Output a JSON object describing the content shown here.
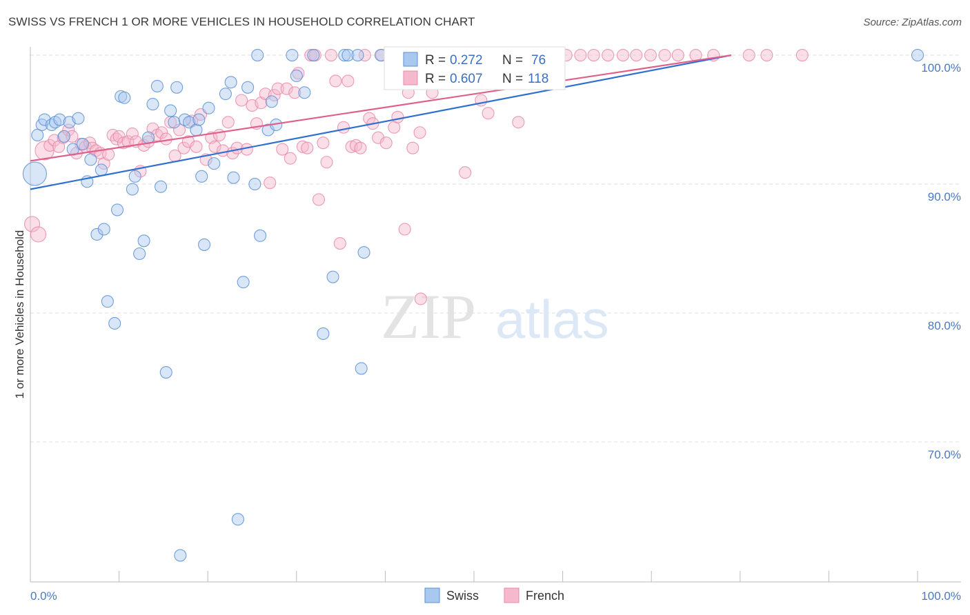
{
  "title": "SWISS VS FRENCH 1 OR MORE VEHICLES IN HOUSEHOLD CORRELATION CHART",
  "source": "Source: ZipAtlas.com",
  "watermark": {
    "zip": "ZIP",
    "atlas": "atlas"
  },
  "colors": {
    "swiss_fill": "#a8c8f0",
    "swiss_stroke": "#5b8fd6",
    "swiss_line": "#2f6fd0",
    "french_fill": "#f6b8cc",
    "french_stroke": "#e88aa8",
    "french_line": "#e0608c",
    "tick_text": "#4a78c2",
    "grid": "#dddddd"
  },
  "chart_data": {
    "type": "scatter",
    "xlabel": "",
    "ylabel": "1 or more Vehicles in Household",
    "xlim": [
      0,
      100
    ],
    "ylim": [
      60,
      101.5
    ],
    "x_ticks": [
      {
        "value": 0,
        "label": "0.0%"
      },
      {
        "value": 100,
        "label": "100.0%"
      }
    ],
    "y_ticks": [
      {
        "value": 100,
        "label": "100.0%"
      },
      {
        "value": 90,
        "label": "90.0%"
      },
      {
        "value": 80,
        "label": "80.0%"
      },
      {
        "value": 70,
        "label": "70.0%"
      }
    ],
    "legend_placement": "top-center",
    "legend": [
      {
        "name": "Swiss",
        "r_label": "R =",
        "r": "0.272",
        "n_label": "N =",
        "n": "76"
      },
      {
        "name": "French",
        "r_label": "R =",
        "r": "0.607",
        "n_label": "N =",
        "n": "118"
      }
    ],
    "series": [
      {
        "name": "Swiss",
        "trend": {
          "x0": 0,
          "y0": 89.6,
          "x1": 79,
          "y1": 100
        },
        "points": [
          [
            0.5,
            90.8,
            2.0
          ],
          [
            0.8,
            93.8,
            1
          ],
          [
            1.3,
            94.6,
            1
          ],
          [
            1.6,
            95.0,
            1
          ],
          [
            2.4,
            94.6,
            1
          ],
          [
            2.8,
            94.8,
            1
          ],
          [
            3.3,
            95.0,
            1
          ],
          [
            3.8,
            93.7,
            1
          ],
          [
            4.4,
            94.8,
            1
          ],
          [
            4.8,
            92.7,
            1
          ],
          [
            5.4,
            95.1,
            1
          ],
          [
            5.9,
            93.1,
            1
          ],
          [
            6.4,
            90.2,
            1
          ],
          [
            6.8,
            91.9,
            1
          ],
          [
            7.5,
            86.1,
            1
          ],
          [
            8.0,
            91.1,
            1
          ],
          [
            8.3,
            86.5,
            1
          ],
          [
            8.7,
            80.9,
            1
          ],
          [
            9.5,
            79.2,
            1
          ],
          [
            9.8,
            88.0,
            1
          ],
          [
            10.2,
            96.8,
            1
          ],
          [
            10.6,
            96.7,
            1
          ],
          [
            11.5,
            89.6,
            1
          ],
          [
            11.8,
            90.6,
            1
          ],
          [
            12.3,
            84.6,
            1
          ],
          [
            12.8,
            85.6,
            1
          ],
          [
            13.3,
            93.6,
            1
          ],
          [
            13.8,
            96.2,
            1
          ],
          [
            14.3,
            97.6,
            1
          ],
          [
            14.7,
            89.8,
            1
          ],
          [
            15.3,
            75.4,
            1
          ],
          [
            15.8,
            95.7,
            1
          ],
          [
            16.2,
            94.8,
            1
          ],
          [
            16.5,
            97.5,
            1
          ],
          [
            16.9,
            61.2,
            1
          ],
          [
            17.4,
            95.0,
            1
          ],
          [
            17.9,
            94.8,
            1
          ],
          [
            18.7,
            94.2,
            1
          ],
          [
            19.0,
            95.0,
            1
          ],
          [
            19.3,
            90.6,
            1
          ],
          [
            19.6,
            85.3,
            1
          ],
          [
            20.1,
            95.9,
            1
          ],
          [
            20.7,
            91.6,
            1
          ],
          [
            22.0,
            97.0,
            1
          ],
          [
            22.6,
            97.9,
            1
          ],
          [
            22.9,
            90.5,
            1
          ],
          [
            23.4,
            64.0,
            1
          ],
          [
            24.0,
            82.4,
            1
          ],
          [
            24.5,
            97.5,
            1
          ],
          [
            25.3,
            90.0,
            1
          ],
          [
            25.6,
            100,
            1
          ],
          [
            25.9,
            86.0,
            1
          ],
          [
            26.8,
            94.2,
            1
          ],
          [
            27.2,
            96.4,
            1
          ],
          [
            27.7,
            94.6,
            1
          ],
          [
            29.5,
            100,
            1
          ],
          [
            30.0,
            98.4,
            1
          ],
          [
            30.9,
            97.1,
            1
          ],
          [
            31.9,
            100,
            1
          ],
          [
            33.0,
            78.4,
            1
          ],
          [
            34.1,
            82.8,
            1
          ],
          [
            35.4,
            100,
            1
          ],
          [
            35.8,
            100,
            1
          ],
          [
            36.9,
            100,
            1
          ],
          [
            37.3,
            75.7,
            1
          ],
          [
            37.6,
            84.7,
            1
          ],
          [
            39.5,
            100,
            1
          ],
          [
            100,
            100,
            1
          ]
        ]
      },
      {
        "name": "French",
        "trend": {
          "x0": 0,
          "y0": 91.8,
          "x1": 79,
          "y1": 100
        },
        "points": [
          [
            0.2,
            86.9,
            1.3
          ],
          [
            0.9,
            86.1,
            1.3
          ],
          [
            1.6,
            92.6,
            1.6
          ],
          [
            2.2,
            93.0,
            1
          ],
          [
            2.7,
            93.4,
            1
          ],
          [
            3.2,
            92.9,
            1
          ],
          [
            3.7,
            93.6,
            1
          ],
          [
            4.3,
            94.2,
            1
          ],
          [
            4.7,
            93.7,
            1
          ],
          [
            5.2,
            92.4,
            1
          ],
          [
            5.7,
            93.1,
            1
          ],
          [
            6.2,
            92.9,
            1
          ],
          [
            6.7,
            93.2,
            1
          ],
          [
            7.0,
            92.8,
            1
          ],
          [
            7.4,
            92.6,
            1
          ],
          [
            7.9,
            92.4,
            1
          ],
          [
            8.3,
            91.6,
            1
          ],
          [
            8.8,
            92.3,
            1
          ],
          [
            9.3,
            93.8,
            1
          ],
          [
            9.7,
            93.5,
            1
          ],
          [
            10.0,
            93.7,
            1
          ],
          [
            10.5,
            93.2,
            1
          ],
          [
            11.0,
            93.3,
            1
          ],
          [
            11.5,
            93.9,
            1
          ],
          [
            11.9,
            93.3,
            1
          ],
          [
            12.4,
            91.0,
            1
          ],
          [
            12.8,
            93.0,
            1
          ],
          [
            13.3,
            93.3,
            1
          ],
          [
            13.8,
            94.3,
            1
          ],
          [
            14.3,
            93.8,
            1
          ],
          [
            14.8,
            94.0,
            1
          ],
          [
            15.3,
            93.5,
            1
          ],
          [
            15.8,
            94.8,
            1
          ],
          [
            16.3,
            92.2,
            1
          ],
          [
            16.8,
            94.2,
            1
          ],
          [
            17.3,
            92.8,
            1
          ],
          [
            17.8,
            93.3,
            1
          ],
          [
            18.2,
            94.9,
            1
          ],
          [
            18.7,
            92.9,
            1
          ],
          [
            19.2,
            95.4,
            1
          ],
          [
            19.8,
            91.9,
            1
          ],
          [
            20.4,
            93.6,
            1
          ],
          [
            20.8,
            92.9,
            1
          ],
          [
            21.3,
            93.8,
            1
          ],
          [
            21.7,
            92.6,
            1
          ],
          [
            22.3,
            94.8,
            1
          ],
          [
            22.8,
            92.4,
            1
          ],
          [
            23.3,
            92.8,
            1
          ],
          [
            23.8,
            96.5,
            1
          ],
          [
            24.4,
            92.7,
            1
          ],
          [
            25.0,
            96.1,
            1
          ],
          [
            25.5,
            94.7,
            1
          ],
          [
            26.0,
            96.3,
            1
          ],
          [
            26.5,
            97.0,
            1
          ],
          [
            27.0,
            90.1,
            1
          ],
          [
            27.5,
            96.9,
            1
          ],
          [
            27.9,
            97.4,
            1
          ],
          [
            28.4,
            92.7,
            1
          ],
          [
            28.9,
            97.4,
            1
          ],
          [
            29.3,
            92.0,
            1
          ],
          [
            29.8,
            97.1,
            1
          ],
          [
            30.2,
            98.6,
            1
          ],
          [
            30.7,
            92.9,
            1
          ],
          [
            31.2,
            92.8,
            1
          ],
          [
            31.6,
            100,
            1
          ],
          [
            32.1,
            100,
            1
          ],
          [
            32.5,
            88.8,
            1
          ],
          [
            33.0,
            93.2,
            1
          ],
          [
            33.4,
            91.7,
            1
          ],
          [
            33.9,
            100,
            1
          ],
          [
            34.4,
            98.0,
            1
          ],
          [
            34.9,
            85.4,
            1
          ],
          [
            35.3,
            94.4,
            1
          ],
          [
            35.8,
            98.0,
            1
          ],
          [
            36.2,
            92.9,
            1
          ],
          [
            36.7,
            93.0,
            1
          ],
          [
            37.2,
            92.8,
            1
          ],
          [
            37.7,
            100,
            1
          ],
          [
            38.2,
            95.1,
            1
          ],
          [
            38.6,
            94.7,
            1
          ],
          [
            39.2,
            93.6,
            1
          ],
          [
            39.6,
            100,
            1
          ],
          [
            40.1,
            93.2,
            1
          ],
          [
            40.6,
            100,
            1
          ],
          [
            41.0,
            94.4,
            1
          ],
          [
            41.4,
            95.2,
            1
          ],
          [
            41.8,
            100,
            1
          ],
          [
            42.2,
            86.5,
            1
          ],
          [
            42.6,
            97.1,
            1
          ],
          [
            43.1,
            92.8,
            1
          ],
          [
            43.5,
            100,
            1
          ],
          [
            43.9,
            94.0,
            1
          ],
          [
            44.0,
            81.1,
            1
          ],
          [
            44.8,
            100,
            1
          ],
          [
            45.3,
            97.1,
            1
          ],
          [
            46.8,
            100,
            1
          ],
          [
            47.8,
            100,
            1
          ],
          [
            49.0,
            90.9,
            1
          ],
          [
            50.8,
            96.5,
            1
          ],
          [
            51.6,
            95.5,
            1
          ],
          [
            53.2,
            100,
            1
          ],
          [
            55.0,
            94.8,
            1
          ],
          [
            56.5,
            100,
            1
          ],
          [
            58.8,
            100,
            1
          ],
          [
            60.4,
            100,
            1
          ],
          [
            62.0,
            100,
            1
          ],
          [
            63.5,
            100,
            1
          ],
          [
            65.1,
            100,
            1
          ],
          [
            66.8,
            100,
            1
          ],
          [
            68.3,
            100,
            1
          ],
          [
            69.9,
            100,
            1
          ],
          [
            71.5,
            100,
            1
          ],
          [
            73.0,
            100,
            1
          ],
          [
            75.0,
            100,
            1
          ],
          [
            77.0,
            100,
            1
          ],
          [
            81.0,
            100,
            1
          ],
          [
            83.0,
            100,
            1
          ],
          [
            87.0,
            100,
            1
          ]
        ]
      }
    ]
  }
}
